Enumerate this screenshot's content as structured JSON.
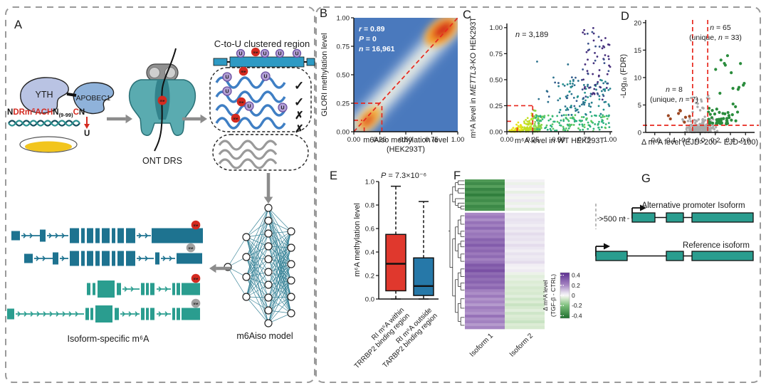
{
  "panels": {
    "A": "A",
    "B": "B",
    "C": "C",
    "D": "D",
    "E": "E",
    "F": "F",
    "G": "G"
  },
  "panelA": {
    "yth": "YTH",
    "apobec1": "APOBEC1",
    "seq": {
      "n1": "N",
      "red1": "DRm",
      "sup6": "6",
      "red2": "ACH",
      "n2": "N",
      "sub": "(9-99)",
      "redC": "C",
      "n3": "N",
      "u": "U"
    },
    "ont_drs": "ONT DRS",
    "ctou_title": "C-to-U clustered region",
    "me": "me",
    "u": "U",
    "check": "✓",
    "cross": "✗",
    "model_label": "m6Aiso model",
    "isoform_label": "Isoform-specific m⁶A",
    "colors": {
      "read_blue": "#3f7fc4",
      "read_gray": "#9a9a9a",
      "me_red": "#d42a20",
      "u_fill": "#b3a0d6",
      "u_stroke": "#6a4fa0",
      "gene_bar": "#2e9ac4",
      "isoform_dark": "#1e7390",
      "isoform_green": "#2a9d8f",
      "protein_yth": "#b9c3e3",
      "protein_apobec": "#8fb2da",
      "pore_body": "#5aabb0",
      "arrow_gray": "#8c8c8c",
      "dish_yellow": "#f2c51d"
    }
  },
  "chart_data": [
    {
      "id": "B",
      "type": "density_scatter",
      "stats": {
        "r_label": "r",
        "r_value": " = 0.89",
        "p_label": "P",
        "p_value": " = 0",
        "n_label": "n",
        "n_value": " = 16,961"
      },
      "xlabel_line1": "m6Aiso methylation level",
      "xlabel_line2": "(HEK293T)",
      "ylabel": "GLORI methylation level",
      "x_ticks": [
        "0.00",
        "0.25",
        "0.50",
        "0.75",
        "1.00"
      ],
      "y_ticks": [
        "0.00",
        "0.25",
        "0.50",
        "0.75",
        "1.00"
      ],
      "xlim": [
        0,
        1
      ],
      "ylim": [
        0,
        1
      ],
      "diagonal_guide": true,
      "guides": {
        "h": [
          {
            "y": 0.25,
            "x0": 0,
            "x1": 0.27
          },
          {
            "y": 0.1,
            "x0": 0,
            "x1": 0.08
          }
        ],
        "v": [
          {
            "x": 0.27,
            "y0": 0,
            "y1": 0.25
          },
          {
            "x": 0.1,
            "y0": 0,
            "y1": 0.05
          }
        ]
      },
      "guide_color": "#e8281e",
      "density_profile": "high density band along y=x diagonal; hotspots near (0.12,0.12) and (0.90,0.92); blue low-density background"
    },
    {
      "id": "C",
      "type": "scatter",
      "n_label": "n",
      "n_value": " = 3,189",
      "xlabel": "m⁶A level in WT HEK293T",
      "ylabel_parts": [
        "m⁶A level in ",
        "METTL3",
        "-KO HEK293T"
      ],
      "x_ticks": [
        "0.00",
        "0.25",
        "0.50",
        "0.75",
        "1.00"
      ],
      "y_ticks": [
        "0.00",
        "0.25",
        "0.50",
        "0.75",
        "1.00"
      ],
      "xlim": [
        0,
        1.02
      ],
      "ylim": [
        0,
        1.04
      ],
      "guides": {
        "h": [
          {
            "y": 0.25,
            "x0": 0,
            "x1": 0.25
          },
          {
            "y": 0.1,
            "x0": 0,
            "x1": 0.05
          }
        ],
        "v": [
          {
            "x": 0.25,
            "y0": 0,
            "y1": 0.25
          },
          {
            "x": 0.1,
            "y0": 0,
            "y1": 0.04
          }
        ]
      },
      "guide_color": "#e8281e",
      "clusters": [
        {
          "gen": "wedge",
          "n": 170,
          "x": [
            0.02,
            0.34
          ],
          "y": [
            0,
            0.28
          ],
          "colors": [
            "#e7e419",
            "#c2df23",
            "#8bd646"
          ]
        },
        {
          "gen": "uniform",
          "n": 130,
          "x": [
            0.28,
            1.0
          ],
          "y": [
            0.005,
            0.16
          ],
          "colors": [
            "#5ec962",
            "#35b779",
            "#28ae80"
          ]
        },
        {
          "gen": "uniform",
          "n": 90,
          "x": [
            0.5,
            1.0
          ],
          "y": [
            0.14,
            0.5
          ],
          "colors": [
            "#21918c",
            "#2c728e",
            "#27808e"
          ]
        },
        {
          "gen": "uniform",
          "n": 70,
          "x": [
            0.72,
            1.0
          ],
          "y": [
            0.3,
            1.0
          ],
          "colors": [
            "#3b528b",
            "#472d7b",
            "#46327e"
          ]
        },
        {
          "gen": "uniform",
          "n": 18,
          "x": [
            0.28,
            0.68
          ],
          "y": [
            0.22,
            0.78
          ],
          "colors": [
            "#355f8d",
            "#2c728e"
          ]
        }
      ]
    },
    {
      "id": "D",
      "type": "volcano",
      "ann_right1": [
        "n",
        " = 65"
      ],
      "ann_right2": [
        "(unique, ",
        "n",
        " = 33)"
      ],
      "ann_left1": [
        "n",
        " = 8"
      ],
      "ann_left2": [
        "(unique, ",
        "n",
        " = 7)"
      ],
      "xlabel": "Δ m⁶A level (EJD>200 - EJD<100)",
      "ylabel": "-Log₁₀ (FDR)",
      "x_ticks": [
        "-0.6",
        "-0.4",
        "-0.2",
        "0.0",
        "0.2",
        "0.4",
        "0.6"
      ],
      "y_ticks": [
        "0",
        "5",
        "10",
        "15",
        "20"
      ],
      "xlim": [
        -0.72,
        0.72
      ],
      "ylim": [
        0,
        20.5
      ],
      "vlines": [
        -0.1,
        0.1
      ],
      "hline": 1.3,
      "guide_color": "#e8281e",
      "clusters": [
        {
          "gen": "taper",
          "n": 190,
          "x": [
            -0.3,
            0.17
          ],
          "y": [
            0.05,
            3.0
          ],
          "color": "#ababab",
          "r": 1.7
        },
        {
          "gen": "uniform",
          "n": 14,
          "x": [
            -0.12,
            0.12
          ],
          "y": [
            3.0,
            7.0
          ],
          "color": "#ababab",
          "r": 1.7
        },
        {
          "gen": "powx",
          "n": 52,
          "x": [
            0.11,
            0.5
          ],
          "y": [
            1.5,
            5.5
          ],
          "color": "#2a8c3c",
          "r": 2.1
        },
        {
          "gen": "uniform",
          "n": 13,
          "x": [
            0.18,
            0.62
          ],
          "y": [
            5.5,
            15.8
          ],
          "color": "#2a8c3c",
          "r": 2.1
        },
        {
          "gen": "uniform",
          "n": 8,
          "x": [
            -0.46,
            -0.13
          ],
          "y": [
            1.6,
            4.2
          ],
          "color": "#9c4722",
          "r": 2.1
        }
      ]
    },
    {
      "id": "E",
      "type": "box",
      "p_italic": "P",
      "p_rest": " = 7.3×10⁻⁶",
      "ylabel": "m⁶A methylation level",
      "y_ticks": [
        "0.0",
        "0.2",
        "0.4",
        "0.6",
        "0.8",
        "1.0"
      ],
      "ylim": [
        0,
        1
      ],
      "series": [
        {
          "label_line1": "RI m⁶A within",
          "label_line2": "TRRBP2 binding region",
          "color": "#e0382d",
          "low": 0.0,
          "q1": 0.07,
          "median": 0.3,
          "q3": 0.55,
          "high": 0.96
        },
        {
          "label_line1": "RI m⁶A outside",
          "label_line2": "TARBP2 binding region",
          "color": "#2678a8",
          "low": 0.0,
          "q1": 0.03,
          "median": 0.11,
          "q3": 0.35,
          "high": 0.83
        }
      ]
    },
    {
      "id": "F",
      "type": "heatmap",
      "columns": [
        "Isoform 1",
        "Isoform 2"
      ],
      "colorbar": {
        "title_line1": "Δ m⁶A level",
        "title_line2": "(TGF-β - CTRL)",
        "ticks": [
          "0.4",
          "0.2",
          "0",
          "-0.2",
          "-0.4"
        ],
        "tick_values": [
          0.4,
          0.2,
          0,
          -0.2,
          -0.4
        ]
      },
      "colorscale": [
        [
          -0.45,
          "#1e6f2e"
        ],
        [
          -0.2,
          "#7cbf7b"
        ],
        [
          -0.05,
          "#dcecd5"
        ],
        [
          0,
          "#f7f6f7"
        ],
        [
          0.05,
          "#e8e2ef"
        ],
        [
          0.2,
          "#a888c4"
        ],
        [
          0.45,
          "#5b2d90"
        ]
      ],
      "cluster_split_row": 11,
      "rows": [
        [
          -0.32,
          0.01
        ],
        [
          -0.36,
          -0.02
        ],
        [
          -0.3,
          0.02
        ],
        [
          -0.38,
          0.0
        ],
        [
          -0.34,
          -0.03
        ],
        [
          -0.4,
          0.02
        ],
        [
          -0.33,
          -0.01
        ],
        [
          -0.36,
          0.03
        ],
        [
          -0.31,
          -0.02
        ],
        [
          -0.37,
          0.01
        ],
        [
          -0.34,
          -0.04
        ],
        [
          0.2,
          0.04
        ],
        [
          0.24,
          0.03
        ],
        [
          0.19,
          0.05
        ],
        [
          0.26,
          0.04
        ],
        [
          0.22,
          0.02
        ],
        [
          0.28,
          0.05
        ],
        [
          0.21,
          0.03
        ],
        [
          0.25,
          0.06
        ],
        [
          0.23,
          0.04
        ],
        [
          0.3,
          0.05
        ],
        [
          0.27,
          0.03
        ],
        [
          0.32,
          0.06
        ],
        [
          0.26,
          0.04
        ],
        [
          0.29,
          0.02
        ],
        [
          0.24,
          0.05
        ],
        [
          0.28,
          0.03
        ],
        [
          0.22,
          0.04
        ],
        [
          0.26,
          0.06
        ],
        [
          0.33,
          0.02
        ],
        [
          0.3,
          0.01
        ],
        [
          0.35,
          0.03
        ],
        [
          0.28,
          -0.02
        ],
        [
          0.31,
          -0.04
        ],
        [
          0.27,
          -0.03
        ],
        [
          0.3,
          -0.05
        ],
        [
          0.25,
          -0.04
        ],
        [
          0.29,
          -0.06
        ],
        [
          0.22,
          -0.05
        ],
        [
          0.19,
          -0.06
        ],
        [
          0.24,
          -0.04
        ],
        [
          0.18,
          -0.07
        ],
        [
          0.21,
          -0.05
        ],
        [
          0.17,
          -0.08
        ],
        [
          0.23,
          -0.06
        ],
        [
          0.2,
          -0.04
        ],
        [
          0.18,
          -0.07
        ],
        [
          0.26,
          -0.05
        ],
        [
          0.19,
          -0.06
        ],
        [
          0.22,
          -0.08
        ],
        [
          0.17,
          -0.05
        ],
        [
          0.21,
          -0.06
        ]
      ]
    }
  ],
  "panelG": {
    "distance_label": ">500 nt",
    "alt_label": "Alternative promoter Isoform",
    "ref_label": "Reference isoform",
    "exon_color": "#2a9d8f"
  }
}
